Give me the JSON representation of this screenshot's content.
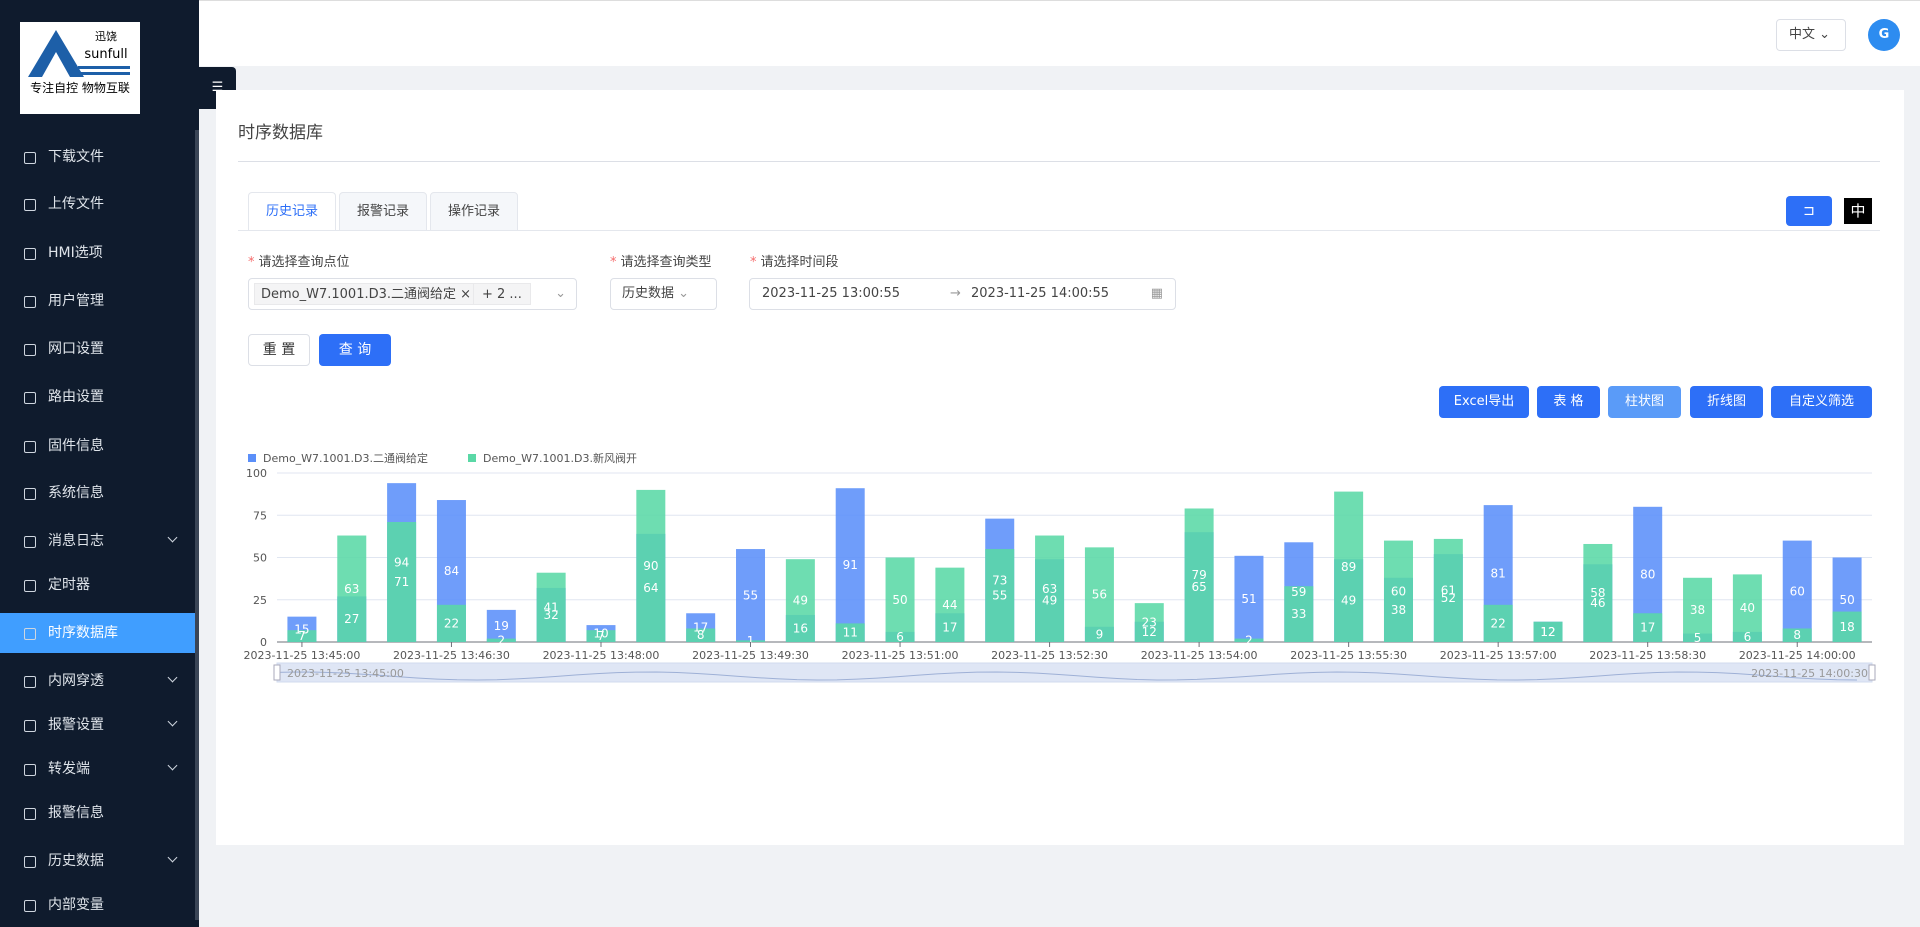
{
  "sidebar": {
    "logo": {
      "brand": "迅饶",
      "name": "sunfull",
      "slogan": "专注自控 物物互联"
    },
    "menu": [
      {
        "label": "下载文件"
      },
      {
        "label": "上传文件"
      },
      {
        "label": "HMI选项"
      },
      {
        "label": "用户管理"
      },
      {
        "label": "网口设置"
      },
      {
        "label": "路由设置"
      },
      {
        "label": "固件信息"
      },
      {
        "label": "系统信息"
      },
      {
        "label": "消息日志",
        "expand": true
      },
      {
        "label": "定时器"
      },
      {
        "label": "时序数据库",
        "active": true
      },
      {
        "label": "内网穿透",
        "expand": true
      },
      {
        "label": "报警设置",
        "expand": true
      },
      {
        "label": "转发端",
        "expand": true
      },
      {
        "label": "报警信息"
      },
      {
        "label": "历史数据",
        "expand": true
      },
      {
        "label": "内部变量"
      }
    ]
  },
  "header": {
    "language": "中文"
  },
  "page": {
    "title": "时序数据库",
    "tabs": [
      "历史记录",
      "报警记录",
      "操作记录"
    ],
    "lang_badge": "中",
    "form": {
      "point_label": "请选择查询点位",
      "point_value": "Demo_W7.1001.D3.二通阀给定",
      "point_more": "+ 2 ...",
      "type_label": "请选择查询类型",
      "type_value": "历史数据",
      "time_label": "请选择时间段",
      "time_start": "2023-11-25 13:00:55",
      "time_end": "2023-11-25 14:00:55",
      "reset": "重 置",
      "query": "查 询"
    },
    "tools": [
      "Excel导出",
      "表 格",
      "柱状图",
      "折线图",
      "自定义筛选"
    ]
  },
  "chart_data": {
    "type": "bar",
    "ylim": [
      0,
      100
    ],
    "yticks": [
      0,
      25,
      50,
      75,
      100
    ],
    "grid": true,
    "categories": [
      "2023-11-25 13:45:00",
      null,
      null,
      "2023-11-25 13:46:30",
      null,
      null,
      "2023-11-25 13:48:00",
      null,
      null,
      "2023-11-25 13:49:30",
      null,
      null,
      "2023-11-25 13:51:00",
      null,
      null,
      "2023-11-25 13:52:30",
      null,
      null,
      "2023-11-25 13:54:00",
      null,
      null,
      "2023-11-25 13:55:30",
      null,
      null,
      "2023-11-25 13:57:00",
      null,
      null,
      "2023-11-25 13:58:30",
      null,
      null,
      "2023-11-25 14:00:00",
      null
    ],
    "series": [
      {
        "name": "Demo_W7.1001.D3.二通阀给定",
        "color": "#5b8ff9",
        "values": [
          15,
          27,
          94,
          84,
          19,
          32,
          10,
          64,
          17,
          55,
          16,
          91,
          6,
          17,
          73,
          49,
          9,
          12,
          65,
          51,
          59,
          49,
          38,
          52,
          81,
          12,
          46,
          80,
          5,
          6,
          60,
          50
        ]
      },
      {
        "name": "Demo_W7.1001.D3.新风阀开",
        "color": "#5ad8a6",
        "values": [
          7,
          63,
          71,
          22,
          2,
          41,
          7,
          90,
          8,
          1,
          49,
          11,
          50,
          44,
          55,
          63,
          56,
          23,
          79,
          2,
          33,
          89,
          60,
          61,
          22,
          12,
          58,
          17,
          38,
          40,
          8,
          18
        ]
      }
    ],
    "data_zoom": {
      "start_label": "2023-11-25 13:45:00",
      "end_label": "2023-11-25 14:00:30"
    }
  }
}
